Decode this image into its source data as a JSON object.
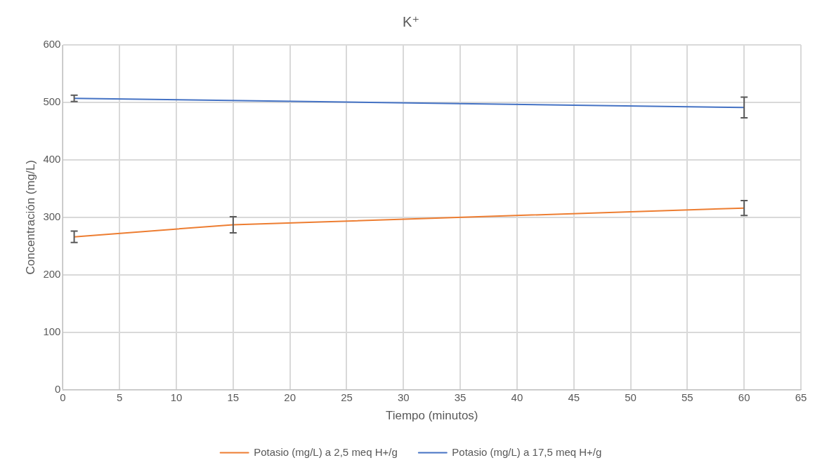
{
  "chart_data": {
    "type": "line",
    "title": "K⁺",
    "xlabel": "Tiempo (minutos)",
    "ylabel": "Concentración (mg/L)",
    "xlim": [
      0,
      65
    ],
    "xticks": [
      0,
      5,
      10,
      15,
      20,
      25,
      30,
      35,
      40,
      45,
      50,
      55,
      60,
      65
    ],
    "ylim": [
      0,
      600
    ],
    "yticks": [
      0,
      100,
      200,
      300,
      400,
      500,
      600
    ],
    "grid": true,
    "legend": "bottom",
    "line_style": "solid",
    "series": [
      {
        "name": "Potasio (mg/L) a 2,5 meq H+/g",
        "color": "#ed7d31",
        "x": [
          1,
          15,
          60
        ],
        "values": [
          266,
          287,
          316
        ],
        "errors": [
          10,
          14,
          13
        ]
      },
      {
        "name": "Potasio (mg/L) a 17,5 meq H+/g",
        "color": "#4472c4",
        "x": [
          1,
          60
        ],
        "values": [
          507,
          491
        ],
        "errors": [
          5.5,
          18
        ]
      }
    ]
  }
}
